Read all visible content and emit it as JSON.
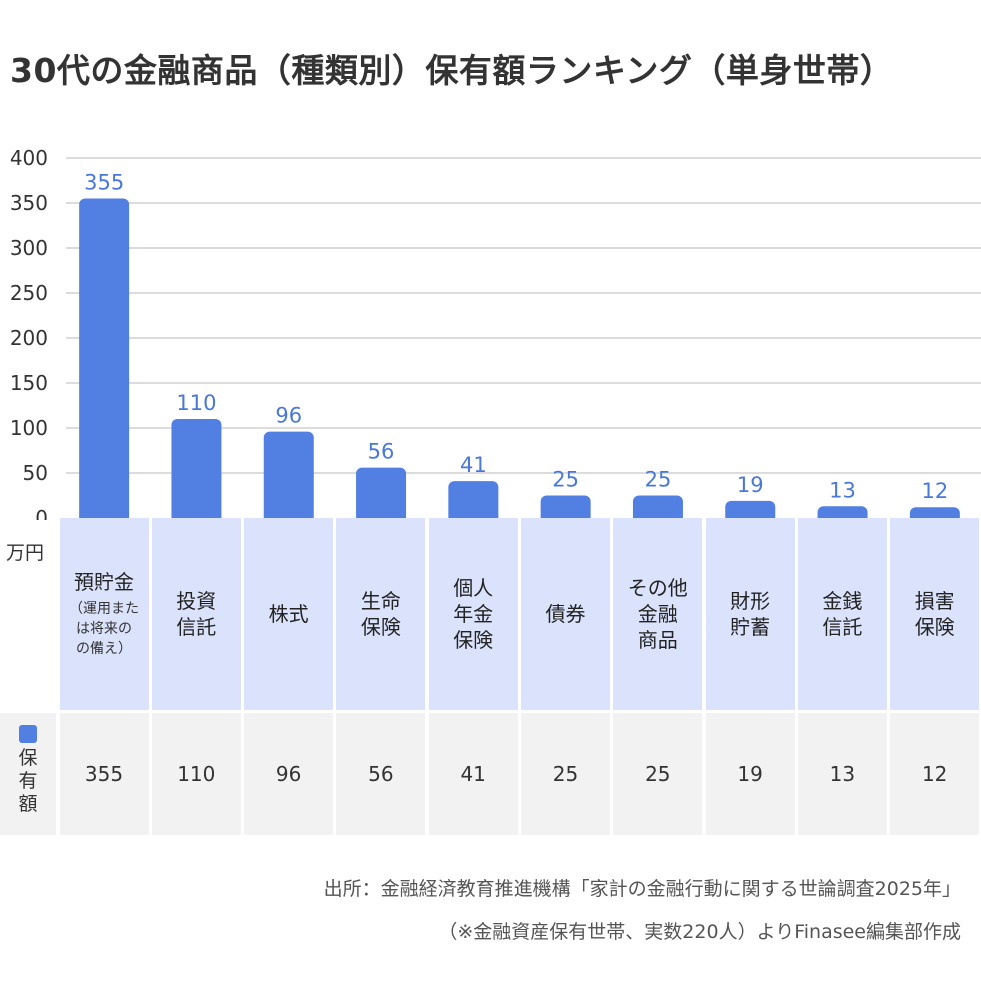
{
  "title": "30代の金融商品（種類別）保有額ランキング（単身世帯）",
  "unit_label": "万円",
  "legend": {
    "label": "保\n有\n額",
    "color": "#517fe2"
  },
  "source_lines": [
    "出所：金融経済教育推進機構「家計の金融行動に関する世論調査2025年」",
    "（※金融資産保有世帯、実数220人）よりFinasee編集部作成"
  ],
  "chart_data": {
    "type": "bar",
    "title": "30代の金融商品（種類別）保有額ランキング（単身世帯）",
    "categories": [
      {
        "label": "預貯金",
        "note": "（運用また\nは将来の\nの備え）"
      },
      {
        "label": "投資\n信託",
        "note": ""
      },
      {
        "label": "株式",
        "note": ""
      },
      {
        "label": "生命\n保険",
        "note": ""
      },
      {
        "label": "個人\n年金\n保険",
        "note": ""
      },
      {
        "label": "債券",
        "note": ""
      },
      {
        "label": "その他\n金融\n商品",
        "note": ""
      },
      {
        "label": "財形\n貯蓄",
        "note": ""
      },
      {
        "label": "金銭\n信託",
        "note": ""
      },
      {
        "label": "損害\n保険",
        "note": ""
      }
    ],
    "values": [
      355,
      110,
      96,
      56,
      41,
      25,
      25,
      19,
      13,
      12
    ],
    "y_ticks": [
      "0",
      "50",
      "100",
      "150",
      "200",
      "250",
      "300",
      "350",
      "400"
    ],
    "ylim": [
      0,
      400
    ],
    "ylabel": "万円",
    "grid": true,
    "bar_color": "#517fe2",
    "label_color": "#4a78d8"
  }
}
